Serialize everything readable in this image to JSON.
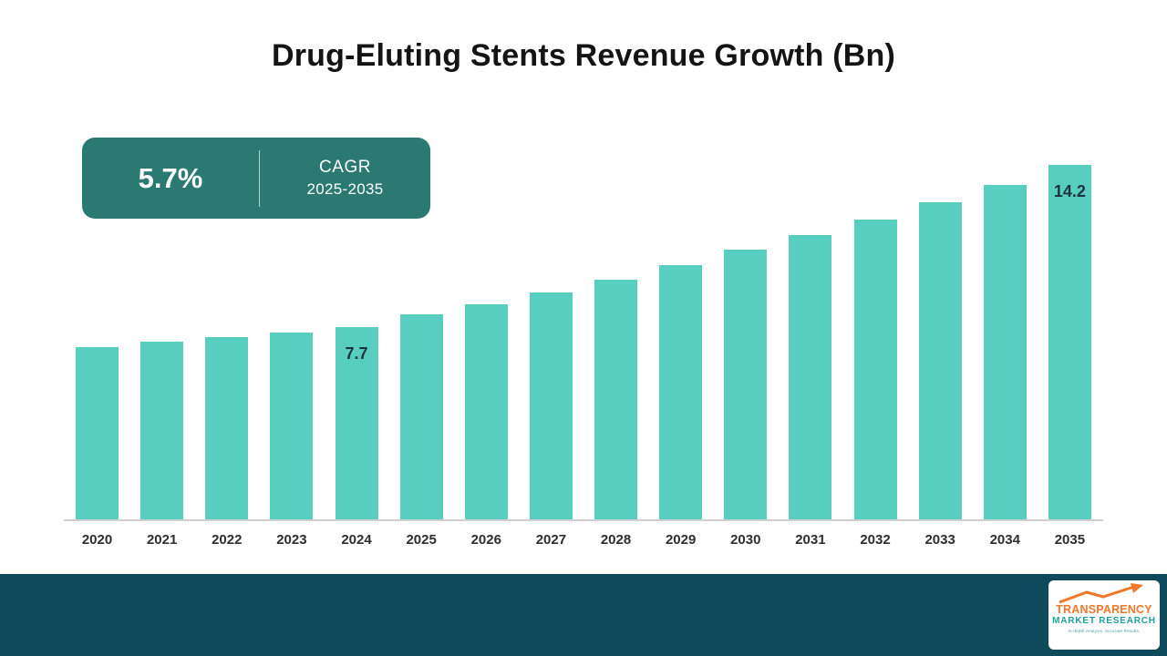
{
  "title": "Drug-Eluting Stents Revenue Growth (Bn)",
  "badge": {
    "value": "5.7%",
    "label": "CAGR",
    "period": "2025-2035"
  },
  "chart_data": {
    "type": "bar",
    "title": "Drug-Eluting Stents Revenue Growth (Bn)",
    "categories": [
      "2020",
      "2021",
      "2022",
      "2023",
      "2024",
      "2025",
      "2026",
      "2027",
      "2028",
      "2029",
      "2030",
      "2031",
      "2032",
      "2033",
      "2034",
      "2035"
    ],
    "values": [
      6.9,
      7.1,
      7.3,
      7.5,
      7.7,
      8.2,
      8.6,
      9.1,
      9.6,
      10.2,
      10.8,
      11.4,
      12.0,
      12.7,
      13.4,
      14.2
    ],
    "data_labels": {
      "4": "7.7",
      "15": "14.2"
    },
    "unit": "Bn",
    "xlabel": "",
    "ylabel": "",
    "ylim": [
      0,
      14.6
    ],
    "grid": false,
    "legend": false,
    "bar_color": "#58cec1"
  },
  "footer": {
    "logo": {
      "line1": "TRANSPARENCY",
      "line2": "MARKET RESEARCH",
      "tagline": "In-depth Analysis. Accurate Results."
    }
  },
  "colors": {
    "bar": "#58cec1",
    "badge_bg": "#2a7a71",
    "footer_bg": "#0e4a5c",
    "logo_orange": "#f1782a",
    "logo_teal": "#1e9e9e",
    "data_label_text": "#1c3440"
  }
}
